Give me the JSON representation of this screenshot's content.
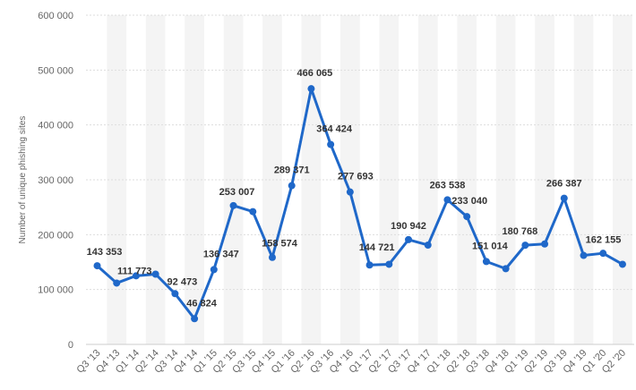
{
  "chart_data": {
    "type": "line",
    "title": "",
    "xlabel": "",
    "ylabel": "Number of unique phishing sites",
    "ylim": [
      0,
      600000
    ],
    "y_ticks": [
      0,
      100000,
      200000,
      300000,
      400000,
      500000,
      600000
    ],
    "y_tick_labels": [
      "0",
      "100 000",
      "200 000",
      "300 000",
      "400 000",
      "500 000",
      "600 000"
    ],
    "grid": true,
    "legend": "none",
    "line_color": "#1f68c9",
    "categories": [
      "Q3 '13",
      "Q4 '13",
      "Q1 '14",
      "Q2 '14",
      "Q3 '14",
      "Q4 '14",
      "Q1 '15",
      "Q2 '15",
      "Q3 '15",
      "Q4 '15",
      "Q1 '16",
      "Q2 '16",
      "Q3 '16",
      "Q4 '16",
      "Q1 '17",
      "Q2 '17",
      "Q3 '17",
      "Q4 '17",
      "Q1 '18",
      "Q2 '18",
      "Q3 '18",
      "Q4 '18",
      "Q1 '19",
      "Q2 '19",
      "Q3 '19",
      "Q4 '19",
      "Q1 '20",
      "Q2 '20"
    ],
    "values": [
      143353,
      111773,
      125000,
      128000,
      92473,
      46824,
      136347,
      253007,
      242000,
      158574,
      289371,
      466065,
      364424,
      277693,
      144721,
      146000,
      190942,
      181000,
      263538,
      233040,
      151014,
      138000,
      180768,
      183000,
      266387,
      162155,
      166000,
      146000
    ],
    "labels": [
      "143 353",
      "111 773",
      "",
      "",
      "92 473",
      "46 824",
      "136 347",
      "253 007",
      "",
      "158 574",
      "289 371",
      "466 065",
      "364 424",
      "277 693",
      "144 721",
      "",
      "190 942",
      "",
      "263 538",
      "233 040",
      "151 014",
      "",
      "180 768",
      "",
      "266 387",
      "162 155",
      "",
      ""
    ]
  }
}
